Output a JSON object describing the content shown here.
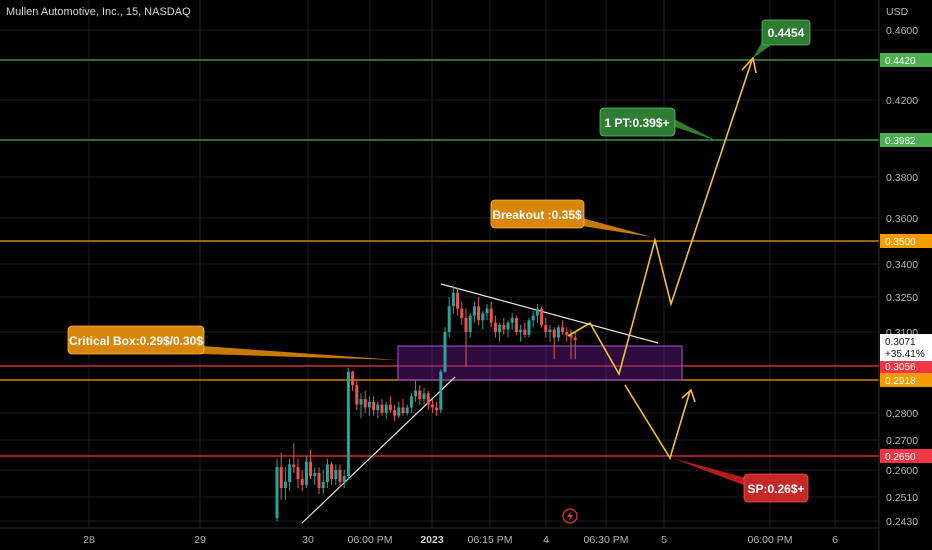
{
  "chart_data": {
    "type": "candlestick",
    "title": "Mullen Automotive, Inc., 15, NASDAQ",
    "currency": "USD",
    "y_ticks": [
      "0.4600",
      "0.4200",
      "0.3800",
      "0.3600",
      "0.3400",
      "0.3250",
      "0.3100",
      "0.2800",
      "0.2700",
      "0.2600",
      "0.2510",
      "0.2430"
    ],
    "x_ticks": [
      "28",
      "29",
      "30",
      "06:00 PM",
      "2023",
      "06:15 PM",
      "4",
      "06:30 PM",
      "5",
      "06:00 PM",
      "6"
    ],
    "price_tags": [
      {
        "key": "p4420",
        "text": "0.4420",
        "color": "#4caf50"
      },
      {
        "key": "p3982",
        "text": "0.3982",
        "color": "#4caf50"
      },
      {
        "key": "p3500",
        "text": "0.3500",
        "color": "#f59b00"
      },
      {
        "key": "p3056",
        "text": "0.3056",
        "color": "#f23645"
      },
      {
        "key": "p2918",
        "text": "0.2918",
        "color": "#f59b00"
      },
      {
        "key": "p2650",
        "text": "0.2650",
        "color": "#f23645"
      }
    ],
    "last_price": {
      "price": "0.3071",
      "change": "+35.41%"
    },
    "annotations": {
      "critical_box": "Critical Box:0.29$/0.30$",
      "breakout": "Breakout :0.35$",
      "pt1": "1 PT:0.39$+",
      "target": "0.4454",
      "sp": "SP:0.26$+"
    },
    "colors": {
      "up": "#26a69a",
      "down": "#ef5350",
      "box": "#7b1fa2",
      "path": "#f5c12d",
      "green_line": "#4caf50",
      "orange_line": "#f59b00",
      "red_line": "#f23645"
    },
    "candles": [
      {
        "o": 0.244,
        "h": 0.264,
        "l": 0.243,
        "c": 0.261
      },
      {
        "o": 0.261,
        "h": 0.266,
        "l": 0.25,
        "c": 0.254
      },
      {
        "o": 0.254,
        "h": 0.261,
        "l": 0.25,
        "c": 0.256
      },
      {
        "o": 0.256,
        "h": 0.264,
        "l": 0.253,
        "c": 0.262
      },
      {
        "o": 0.262,
        "h": 0.269,
        "l": 0.259,
        "c": 0.261
      },
      {
        "o": 0.261,
        "h": 0.264,
        "l": 0.254,
        "c": 0.257
      },
      {
        "o": 0.257,
        "h": 0.26,
        "l": 0.253,
        "c": 0.255
      },
      {
        "o": 0.255,
        "h": 0.265,
        "l": 0.254,
        "c": 0.263
      },
      {
        "o": 0.263,
        "h": 0.267,
        "l": 0.257,
        "c": 0.258
      },
      {
        "o": 0.258,
        "h": 0.261,
        "l": 0.255,
        "c": 0.259
      },
      {
        "o": 0.259,
        "h": 0.261,
        "l": 0.252,
        "c": 0.254
      },
      {
        "o": 0.254,
        "h": 0.26,
        "l": 0.252,
        "c": 0.256
      },
      {
        "o": 0.256,
        "h": 0.264,
        "l": 0.254,
        "c": 0.262
      },
      {
        "o": 0.262,
        "h": 0.263,
        "l": 0.255,
        "c": 0.257
      },
      {
        "o": 0.257,
        "h": 0.262,
        "l": 0.255,
        "c": 0.26
      },
      {
        "o": 0.26,
        "h": 0.262,
        "l": 0.254,
        "c": 0.256
      },
      {
        "o": 0.256,
        "h": 0.26,
        "l": 0.254,
        "c": 0.258
      },
      {
        "o": 0.258,
        "h": 0.304,
        "l": 0.257,
        "c": 0.3
      },
      {
        "o": 0.3,
        "h": 0.301,
        "l": 0.288,
        "c": 0.29
      },
      {
        "o": 0.29,
        "h": 0.293,
        "l": 0.281,
        "c": 0.283
      },
      {
        "o": 0.283,
        "h": 0.287,
        "l": 0.278,
        "c": 0.285
      },
      {
        "o": 0.285,
        "h": 0.288,
        "l": 0.28,
        "c": 0.282
      },
      {
        "o": 0.282,
        "h": 0.286,
        "l": 0.279,
        "c": 0.284
      },
      {
        "o": 0.284,
        "h": 0.286,
        "l": 0.279,
        "c": 0.281
      },
      {
        "o": 0.281,
        "h": 0.284,
        "l": 0.278,
        "c": 0.283
      },
      {
        "o": 0.283,
        "h": 0.285,
        "l": 0.279,
        "c": 0.28
      },
      {
        "o": 0.28,
        "h": 0.284,
        "l": 0.278,
        "c": 0.283
      },
      {
        "o": 0.283,
        "h": 0.286,
        "l": 0.28,
        "c": 0.281
      },
      {
        "o": 0.281,
        "h": 0.283,
        "l": 0.277,
        "c": 0.279
      },
      {
        "o": 0.279,
        "h": 0.284,
        "l": 0.278,
        "c": 0.282
      },
      {
        "o": 0.282,
        "h": 0.285,
        "l": 0.279,
        "c": 0.28
      },
      {
        "o": 0.28,
        "h": 0.283,
        "l": 0.279,
        "c": 0.282
      },
      {
        "o": 0.282,
        "h": 0.287,
        "l": 0.28,
        "c": 0.286
      },
      {
        "o": 0.286,
        "h": 0.292,
        "l": 0.284,
        "c": 0.288
      },
      {
        "o": 0.288,
        "h": 0.29,
        "l": 0.283,
        "c": 0.285
      },
      {
        "o": 0.285,
        "h": 0.289,
        "l": 0.283,
        "c": 0.287
      },
      {
        "o": 0.287,
        "h": 0.288,
        "l": 0.281,
        "c": 0.283
      },
      {
        "o": 0.283,
        "h": 0.285,
        "l": 0.28,
        "c": 0.282
      },
      {
        "o": 0.282,
        "h": 0.284,
        "l": 0.279,
        "c": 0.281
      },
      {
        "o": 0.281,
        "h": 0.302,
        "l": 0.28,
        "c": 0.3
      },
      {
        "o": 0.3,
        "h": 0.312,
        "l": 0.299,
        "c": 0.31
      },
      {
        "o": 0.31,
        "h": 0.325,
        "l": 0.308,
        "c": 0.321
      },
      {
        "o": 0.321,
        "h": 0.33,
        "l": 0.318,
        "c": 0.327
      },
      {
        "o": 0.327,
        "h": 0.329,
        "l": 0.317,
        "c": 0.32
      },
      {
        "o": 0.32,
        "h": 0.323,
        "l": 0.313,
        "c": 0.316
      },
      {
        "o": 0.316,
        "h": 0.32,
        "l": 0.305,
        "c": 0.31
      },
      {
        "o": 0.31,
        "h": 0.318,
        "l": 0.308,
        "c": 0.317
      },
      {
        "o": 0.317,
        "h": 0.323,
        "l": 0.314,
        "c": 0.321
      },
      {
        "o": 0.321,
        "h": 0.325,
        "l": 0.313,
        "c": 0.315
      },
      {
        "o": 0.315,
        "h": 0.319,
        "l": 0.311,
        "c": 0.318
      },
      {
        "o": 0.318,
        "h": 0.322,
        "l": 0.315,
        "c": 0.32
      },
      {
        "o": 0.32,
        "h": 0.323,
        "l": 0.312,
        "c": 0.314
      },
      {
        "o": 0.314,
        "h": 0.317,
        "l": 0.308,
        "c": 0.31
      },
      {
        "o": 0.31,
        "h": 0.314,
        "l": 0.307,
        "c": 0.313
      },
      {
        "o": 0.313,
        "h": 0.316,
        "l": 0.309,
        "c": 0.311
      },
      {
        "o": 0.311,
        "h": 0.315,
        "l": 0.308,
        "c": 0.314
      },
      {
        "o": 0.314,
        "h": 0.318,
        "l": 0.311,
        "c": 0.316
      },
      {
        "o": 0.316,
        "h": 0.317,
        "l": 0.309,
        "c": 0.31
      },
      {
        "o": 0.31,
        "h": 0.313,
        "l": 0.307,
        "c": 0.311
      },
      {
        "o": 0.311,
        "h": 0.314,
        "l": 0.308,
        "c": 0.309
      },
      {
        "o": 0.309,
        "h": 0.316,
        "l": 0.308,
        "c": 0.315
      },
      {
        "o": 0.315,
        "h": 0.319,
        "l": 0.312,
        "c": 0.317
      },
      {
        "o": 0.317,
        "h": 0.322,
        "l": 0.314,
        "c": 0.32
      },
      {
        "o": 0.32,
        "h": 0.321,
        "l": 0.312,
        "c": 0.313
      },
      {
        "o": 0.313,
        "h": 0.316,
        "l": 0.308,
        "c": 0.31
      },
      {
        "o": 0.31,
        "h": 0.313,
        "l": 0.307,
        "c": 0.311
      },
      {
        "o": 0.311,
        "h": 0.312,
        "l": 0.306,
        "c": 0.308
      },
      {
        "o": 0.308,
        "h": 0.313,
        "l": 0.307,
        "c": 0.312
      },
      {
        "o": 0.312,
        "h": 0.315,
        "l": 0.309,
        "c": 0.31
      },
      {
        "o": 0.31,
        "h": 0.312,
        "l": 0.307,
        "c": 0.309
      },
      {
        "o": 0.309,
        "h": 0.311,
        "l": 0.306,
        "c": 0.308
      },
      {
        "o": 0.308,
        "h": 0.31,
        "l": 0.306,
        "c": 0.3071
      }
    ]
  }
}
